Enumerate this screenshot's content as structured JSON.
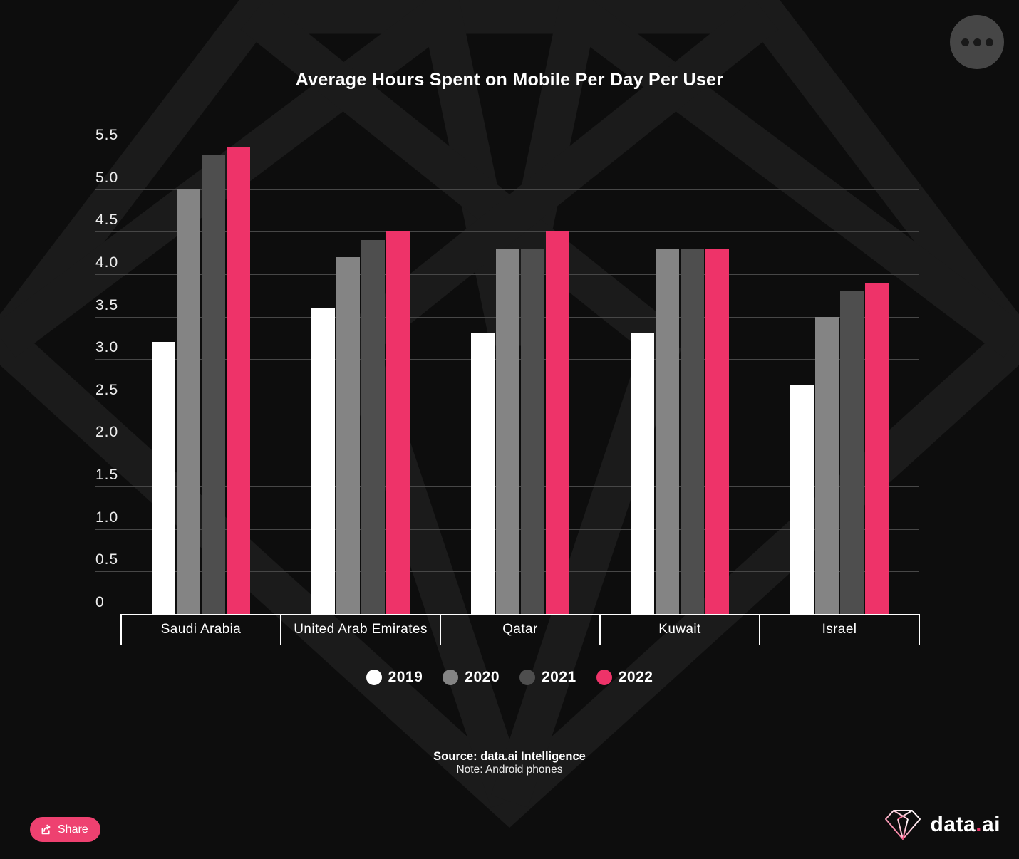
{
  "chart_data": {
    "type": "bar",
    "title": "Average Hours Spent on Mobile Per Day Per User",
    "categories": [
      "Saudi Arabia",
      "United Arab Emirates",
      "Qatar",
      "Kuwait",
      "Israel"
    ],
    "series": [
      {
        "name": "2019",
        "color": "#ffffff",
        "values": [
          3.2,
          3.6,
          3.3,
          3.3,
          2.7
        ]
      },
      {
        "name": "2020",
        "color": "#848484",
        "values": [
          5.0,
          4.2,
          4.3,
          4.3,
          3.5
        ]
      },
      {
        "name": "2021",
        "color": "#4e4e4e",
        "values": [
          5.4,
          4.4,
          4.3,
          4.3,
          3.8
        ]
      },
      {
        "name": "2022",
        "color": "#ee3369",
        "values": [
          5.5,
          4.5,
          4.5,
          4.3,
          3.9
        ]
      }
    ],
    "xlabel": "",
    "ylabel": "",
    "ylim": [
      0,
      5.5
    ],
    "ytick_step": 0.5,
    "ytick_labels": [
      "0",
      "0.5",
      "1.0",
      "1.5",
      "2.0",
      "2.5",
      "3.0",
      "3.5",
      "4.0",
      "4.5",
      "5.0",
      "5.5"
    ],
    "grid": true,
    "legend_position": "bottom"
  },
  "footer": {
    "source": "Source: data.ai Intelligence",
    "note": "Note: Android phones"
  },
  "share": {
    "label": "Share"
  },
  "brand": {
    "left": "data",
    "dot": ".",
    "right": "ai"
  },
  "icons": {
    "menu": "ellipsis-icon",
    "share": "share-export-icon",
    "brand": "gem-icon",
    "watermark": "gem-watermark"
  },
  "colors": {
    "background": "#0d0d0d",
    "accent_pink": "#ee3369",
    "gridline": "#474747"
  }
}
